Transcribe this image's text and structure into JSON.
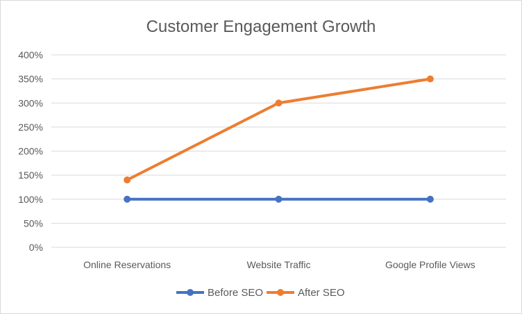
{
  "chart_data": {
    "type": "line",
    "title": "Customer Engagement Growth",
    "categories": [
      "Online Reservations",
      "Website Traffic",
      "Google Profile Views"
    ],
    "series": [
      {
        "name": "Before SEO",
        "values": [
          100,
          100,
          100
        ],
        "color": "#4472c4"
      },
      {
        "name": "After SEO",
        "values": [
          140,
          300,
          350
        ],
        "color": "#ed7d31"
      }
    ],
    "y_unit": "%",
    "ylim": [
      0,
      400
    ],
    "y_ticks": [
      0,
      50,
      100,
      150,
      200,
      250,
      300,
      350,
      400
    ],
    "y_tick_labels": [
      "0%",
      "50%",
      "100%",
      "150%",
      "200%",
      "250%",
      "300%",
      "350%",
      "400%"
    ],
    "grid": true,
    "legend_position": "bottom",
    "colors": {
      "gridline": "#d9d9d9",
      "text": "#595959",
      "border": "#d9d9d9"
    }
  }
}
